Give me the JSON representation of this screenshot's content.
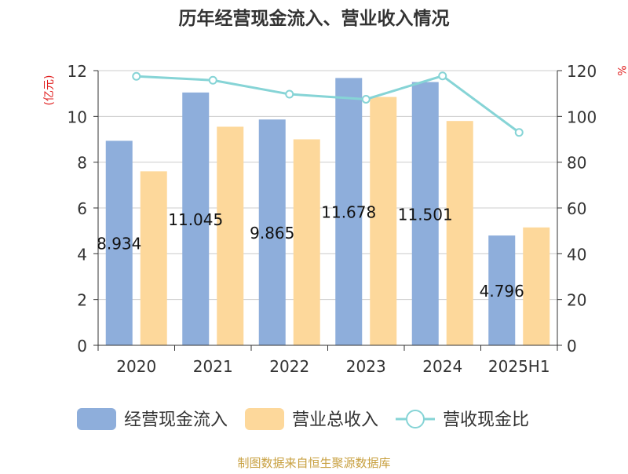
{
  "chart_data": {
    "type": "bar",
    "title": "历年经营现金流入、营业收入情况",
    "ylabel_left": "(亿元)",
    "ylabel_right": "%",
    "categories": [
      "2020",
      "2021",
      "2022",
      "2023",
      "2024",
      "2025H1"
    ],
    "ylim_left": [
      0,
      12
    ],
    "ylim_right": [
      0,
      120
    ],
    "yticks_left": [
      "0",
      "2",
      "4",
      "6",
      "8",
      "10",
      "12"
    ],
    "yticks_right": [
      "0",
      "20",
      "40",
      "60",
      "80",
      "100",
      "120"
    ],
    "grid": true,
    "legend_position": "bottom",
    "series": [
      {
        "name": "经营现金流入",
        "kind": "bar",
        "axis": "left",
        "color": "#8eaedb",
        "values": [
          8.934,
          11.045,
          9.865,
          11.678,
          11.501,
          4.796
        ],
        "labels": [
          "8.934",
          "11.045",
          "9.865",
          "11.678",
          "11.501",
          "4.796"
        ]
      },
      {
        "name": "营业总收入",
        "kind": "bar",
        "axis": "left",
        "color": "#fdd89b",
        "values": [
          7.6,
          9.55,
          9.0,
          10.85,
          9.8,
          5.15
        ]
      },
      {
        "name": "营收现金比",
        "kind": "line",
        "axis": "right",
        "color": "#86d4d6",
        "values": [
          117.5,
          115.8,
          109.7,
          107.5,
          117.7,
          93.0
        ]
      }
    ],
    "source": "制图数据来自恒生聚源数据库"
  }
}
